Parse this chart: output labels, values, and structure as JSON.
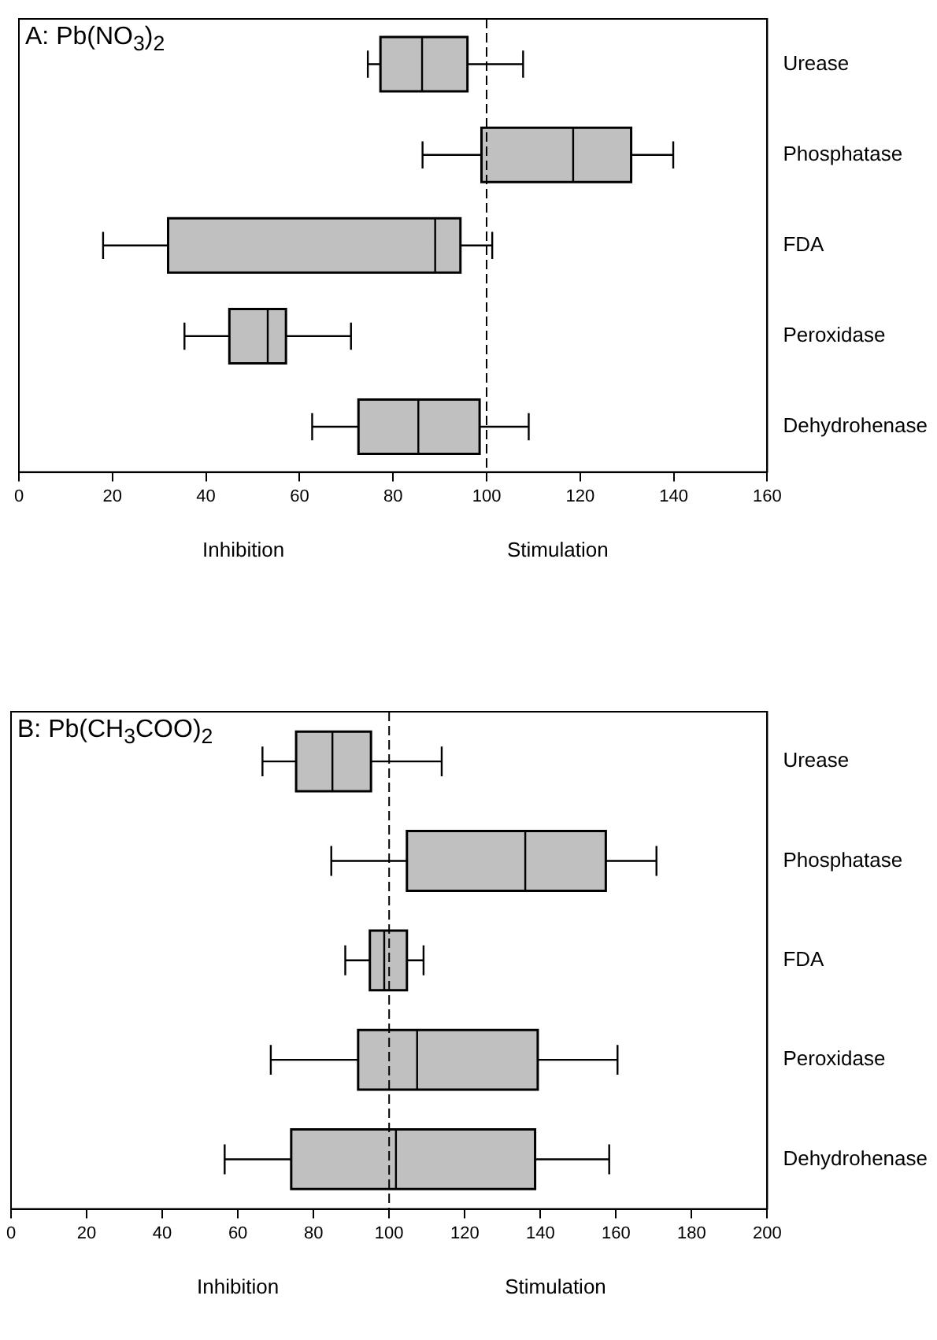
{
  "chart_data": [
    {
      "type": "box",
      "title": "A: Pb(NO$_{3}$)$_{2}$",
      "categories": [
        "Urease",
        "Phosphatase",
        "FDA",
        "Peroxidase",
        "Dehydrohenase"
      ],
      "orientation": "horizontal",
      "color": "#c0c0c0",
      "boxes": [
        {
          "low": 74.6,
          "q1": 77.3,
          "median": 86.2,
          "q3": 95.9,
          "high": 107.8
        },
        {
          "low": 86.3,
          "q1": 98.9,
          "median": 118.5,
          "q3": 130.9,
          "high": 139.9
        },
        {
          "low": 18,
          "q1": 31.9,
          "median": 89,
          "q3": 94.4,
          "high": 101.2
        },
        {
          "low": 35.4,
          "q1": 45,
          "median": 53.2,
          "q3": 57.1,
          "high": 71
        },
        {
          "low": 62.7,
          "q1": 72.6,
          "median": 85.4,
          "q3": 98.5,
          "high": 109
        }
      ],
      "xlim": [
        0,
        160
      ],
      "xticks": [
        0,
        20,
        40,
        60,
        80,
        100,
        120,
        140,
        160
      ],
      "ref_lines": [
        {
          "axis": "x",
          "value": 100,
          "line_style": "dashed"
        }
      ],
      "annotations": [
        "Inhibition",
        "Stimulation"
      ],
      "grid": false
    },
    {
      "type": "box",
      "title": "B: Pb(CH$_{3}$COO)$_{2}$",
      "categories": [
        "Urease",
        "Phosphatase",
        "FDA",
        "Peroxidase",
        "Dehydrohenase"
      ],
      "orientation": "horizontal",
      "color": "#c0c0c0",
      "boxes": [
        {
          "low": 66.5,
          "q1": 75.4,
          "median": 85,
          "q3": 95.2,
          "high": 113.9
        },
        {
          "low": 84.7,
          "q1": 104.7,
          "median": 136,
          "q3": 157.3,
          "high": 170.7
        },
        {
          "low": 88.4,
          "q1": 94.9,
          "median": 98.7,
          "q3": 104.7,
          "high": 109.1
        },
        {
          "low": 68.7,
          "q1": 91.8,
          "median": 107.4,
          "q3": 139.3,
          "high": 160.4
        },
        {
          "low": 56.5,
          "q1": 74.1,
          "median": 101.8,
          "q3": 138.6,
          "high": 158.2
        }
      ],
      "xlim": [
        0,
        200
      ],
      "xticks": [
        0,
        20,
        40,
        60,
        80,
        100,
        120,
        140,
        160,
        180,
        200
      ],
      "ref_lines": [
        {
          "axis": "x",
          "value": 100,
          "line_style": "dashed"
        }
      ],
      "annotations": [
        "Inhibition",
        "Stimulation"
      ],
      "grid": false
    }
  ]
}
